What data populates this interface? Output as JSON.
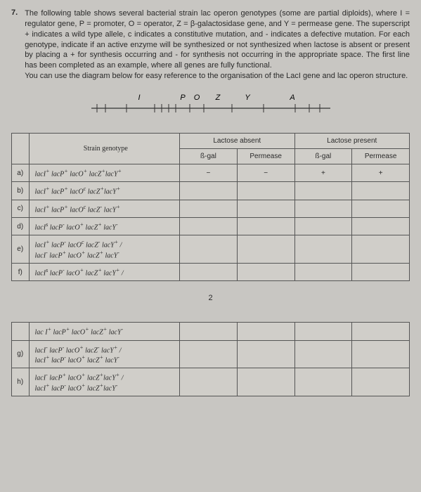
{
  "question": {
    "number": "7.",
    "text": "The following table shows several bacterial strain lac operon genotypes (some are partial diploids), where I = regulator gene, P = promoter, O = operator, Z = β-galactosidase gene, and Y = permease gene. The superscript + indicates a wild type allele, c indicates a constitutive mutation, and - indicates a defective mutation. For each genotype, indicate if an active enzyme will be synthesized or not synthesized when lactose is absent or present by placing a + for synthesis occurring and - for synthesis not occurring in the appropriate space. The first line has been completed as an example, where all genes are fully functional.",
    "text2": "You can use the diagram below for easy reference to the organisation of the LacI gene and lac operon structure."
  },
  "diagram": {
    "labels": [
      "I",
      "P",
      "O",
      "Z",
      "Y",
      "A"
    ]
  },
  "table1": {
    "headers": {
      "strain": "Strain genotype",
      "abs": "Lactose absent",
      "pres": "Lactose present",
      "bgal": "ß-gal",
      "perm": "Permease"
    },
    "rows": [
      {
        "label": "a)",
        "geno_html": "lacI<sup>+</sup> lacP<sup>+</sup> lacO<sup>+</sup> lacZ<sup>+</sup>lacY<sup>+</sup>",
        "abs_b": "−",
        "abs_p": "−",
        "pre_b": "+",
        "pre_p": "+"
      },
      {
        "label": "b)",
        "geno_html": "lacI<sup>+</sup> lacP<sup>+</sup> lacO<sup>c</sup> lacZ<sup>+</sup>lacY<sup>+</sup>",
        "abs_b": "",
        "abs_p": "",
        "pre_b": "",
        "pre_p": ""
      },
      {
        "label": "c)",
        "geno_html": "lacI<sup>+</sup> lacP<sup>+</sup> lacO<sup>c</sup> lacZ<sup>-</sup> lacY<sup>+</sup>",
        "abs_b": "",
        "abs_p": "",
        "pre_b": "",
        "pre_p": ""
      },
      {
        "label": "d)",
        "geno_html": "lacI<sup>s</sup> lacP<sup>-</sup> lacO<sup>+</sup> lacZ<sup>+</sup> lacY<sup>-</sup>",
        "abs_b": "",
        "abs_p": "",
        "pre_b": "",
        "pre_p": ""
      },
      {
        "label": "e)",
        "geno_html": "lacI<sup>+</sup> lacP<sup>-</sup> lacO<sup>c</sup> lacZ<sup>-</sup> lacY<sup>+</sup> / <br> lacI<sup>-</sup> lacP<sup>+</sup> lacO<sup>+</sup> lacZ<sup>+</sup> lacY<sup>-</sup>",
        "abs_b": "",
        "abs_p": "",
        "pre_b": "",
        "pre_p": ""
      },
      {
        "label": "f)",
        "geno_html": "lacI<sup>s</sup> lacP<sup>-</sup> lacO<sup>+</sup> lacZ<sup>+</sup> lacY<sup>+</sup> /",
        "abs_b": "",
        "abs_p": "",
        "pre_b": "",
        "pre_p": ""
      }
    ]
  },
  "page_number": "2",
  "table2": {
    "rows": [
      {
        "label": "",
        "geno_html": "lac I<sup>+</sup> lacP<sup>+</sup> lacO<sup>+</sup> lacZ<sup>+</sup> lacY<sup>-</sup>"
      },
      {
        "label": "g)",
        "geno_html": "lacI<sup>-</sup> lacP<sup>-</sup> lacO<sup>+</sup> lacZ<sup>-</sup> lacY<sup>+</sup> / <br> lacI<sup>+</sup> lacP<sup>-</sup> lacO<sup>+</sup> lacZ<sup>+</sup> lacY<sup>-</sup>"
      },
      {
        "label": "h)",
        "geno_html": "lacI<sup>-</sup> lacP<sup>+</sup> lacO<sup>+</sup> lacZ<sup>+</sup>lacY<sup>+</sup> / <br> lacI<sup>+</sup> lacP<sup>-</sup> lacO<sup>+</sup> lacZ<sup>+</sup>lacY<sup>-</sup>"
      }
    ]
  }
}
